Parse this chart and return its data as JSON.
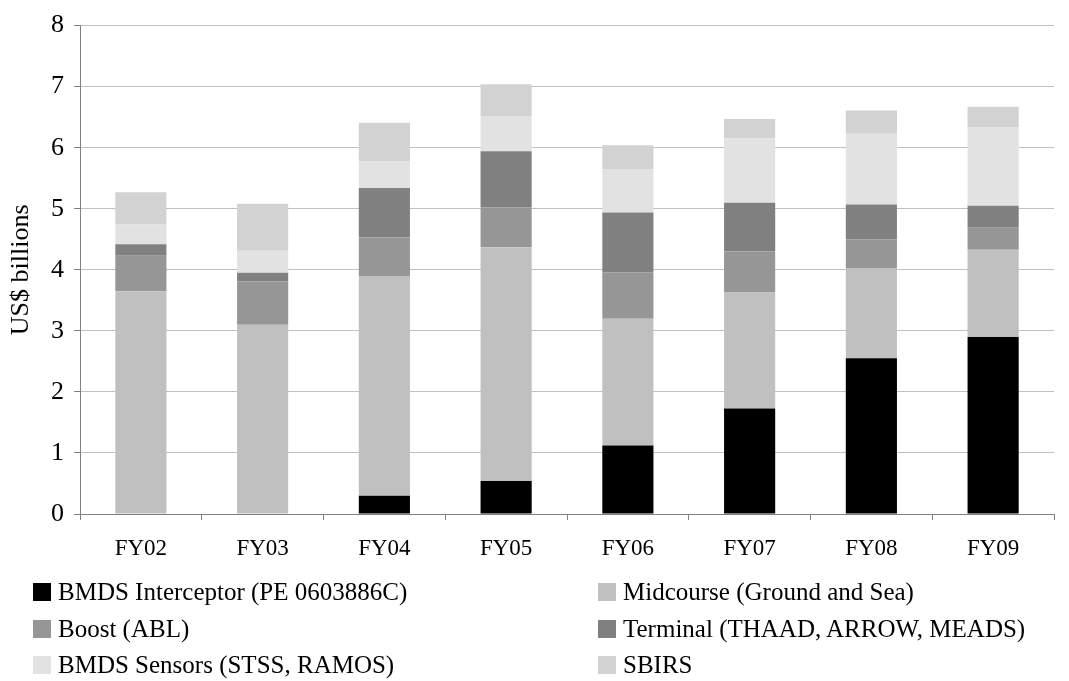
{
  "chart_data": {
    "type": "bar",
    "stacked": true,
    "ylabel": "US$ billions",
    "categories": [
      "FY02",
      "FY03",
      "FY04",
      "FY05",
      "FY06",
      "FY07",
      "FY08",
      "FY09"
    ],
    "ylim": [
      0,
      8
    ],
    "yticks": [
      0,
      1,
      2,
      3,
      4,
      5,
      6,
      7,
      8
    ],
    "grid": "y",
    "legend": "bottom",
    "series": [
      {
        "name": "BMDS Interceptor (PE 0603886C)",
        "color": "#000000",
        "values": [
          0,
          0,
          0.3,
          0.54,
          1.12,
          1.73,
          2.55,
          2.9
        ]
      },
      {
        "name": "Midcourse (Ground and Sea)",
        "color": "#c0c0c0",
        "values": [
          3.65,
          3.1,
          3.6,
          3.83,
          2.08,
          1.9,
          1.48,
          1.43
        ]
      },
      {
        "name": "Boost (ABL)",
        "color": "#969696",
        "values": [
          0.58,
          0.71,
          0.63,
          0.65,
          0.76,
          0.67,
          0.47,
          0.36
        ]
      },
      {
        "name": "Terminal (THAAD, ARROW, MEADS)",
        "color": "#808080",
        "values": [
          0.19,
          0.14,
          0.81,
          0.92,
          0.98,
          0.8,
          0.57,
          0.36
        ]
      },
      {
        "name": "BMDS Sensors (STSS, RAMOS)",
        "color": "#e2e2e2",
        "values": [
          0.32,
          0.36,
          0.44,
          0.58,
          0.71,
          1.05,
          1.16,
          1.28
        ]
      },
      {
        "name": "SBIRS",
        "color": "#d2d2d2",
        "values": [
          0.53,
          0.77,
          0.63,
          0.52,
          0.39,
          0.32,
          0.38,
          0.34
        ]
      }
    ]
  }
}
